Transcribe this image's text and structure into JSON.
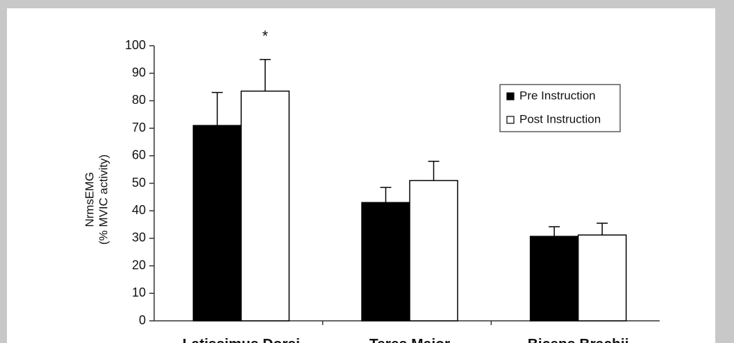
{
  "chart_data": {
    "type": "bar",
    "y_label_lines": [
      "NrmsEMG",
      "(% MVIC activity)"
    ],
    "annotation": "*",
    "categories": [
      "Latissimus Dorsi",
      "Teres Major",
      "Biceps Brachii"
    ],
    "series": [
      {
        "name": "Pre Instruction",
        "color": "#000000",
        "values": [
          71,
          43,
          30.7
        ],
        "errors": [
          12,
          5.5,
          3.5
        ]
      },
      {
        "name": "Post Instruction",
        "color": "#ffffff",
        "values": [
          83.5,
          51,
          31.2
        ],
        "errors": [
          11.5,
          7,
          4.3
        ]
      }
    ],
    "ylim": [
      0,
      100
    ],
    "yticks": [
      0,
      10,
      20,
      30,
      40,
      50,
      60,
      70,
      80,
      90,
      100
    ],
    "grid": false,
    "legend": "upper right"
  }
}
